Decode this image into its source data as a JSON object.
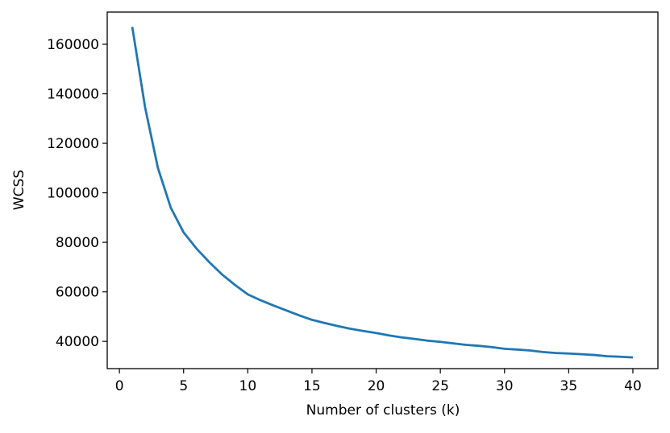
{
  "chart_data": {
    "type": "line",
    "title": "",
    "xlabel": "Number of clusters (k)",
    "ylabel": "WCSS",
    "xlim": [
      -0.95,
      41.95
    ],
    "ylim": [
      29000,
      173000
    ],
    "grid": false,
    "legend": "none",
    "x_ticks": [
      0,
      5,
      10,
      15,
      20,
      25,
      30,
      35,
      40
    ],
    "x_tick_labels": [
      "0",
      "5",
      "10",
      "15",
      "20",
      "25",
      "30",
      "35",
      "40"
    ],
    "y_ticks": [
      40000,
      60000,
      80000,
      100000,
      120000,
      140000,
      160000
    ],
    "y_tick_labels": [
      "40000",
      "60000",
      "80000",
      "100000",
      "120000",
      "140000",
      "160000"
    ],
    "line_color": "#1f77b4",
    "series": [
      {
        "x": [
          1,
          2,
          3,
          4,
          5,
          6,
          7,
          8,
          9,
          10,
          11,
          12,
          13,
          14,
          15,
          16,
          17,
          18,
          19,
          20,
          21,
          22,
          23,
          24,
          25,
          26,
          27,
          28,
          29,
          30,
          31,
          32,
          33,
          34,
          35,
          36,
          37,
          38,
          39,
          40
        ],
        "values": [
          167000,
          134500,
          110000,
          94000,
          84000,
          77500,
          72000,
          67000,
          62800,
          59000,
          56600,
          54500,
          52500,
          50500,
          48700,
          47400,
          46200,
          45100,
          44200,
          43400,
          42400,
          41600,
          41000,
          40300,
          39800,
          39200,
          38600,
          38200,
          37700,
          37000,
          36700,
          36300,
          35700,
          35300,
          35100,
          34800,
          34500,
          34000,
          33800,
          33500
        ]
      }
    ]
  }
}
